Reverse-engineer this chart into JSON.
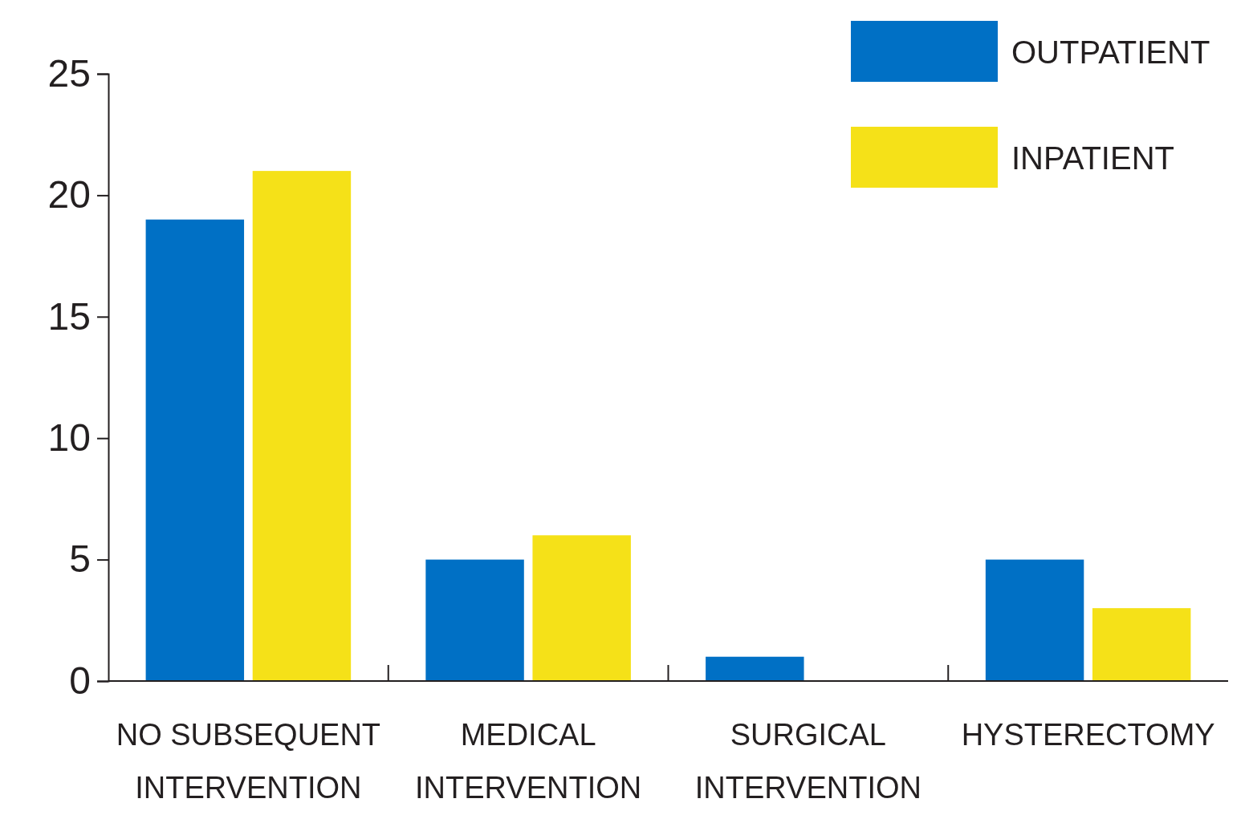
{
  "chart_data": {
    "type": "bar",
    "categories": [
      "NO SUBSEQUENT\nINTERVENTION",
      "MEDICAL\nINTERVENTION",
      "SURGICAL\nINTERVENTION",
      "HYSTERECTOMY"
    ],
    "series": [
      {
        "name": "OUTPATIENT",
        "color": "#0070c5",
        "values": [
          19,
          5,
          1,
          5
        ]
      },
      {
        "name": "INPATIENT",
        "color": "#f5e118",
        "values": [
          21,
          6,
          0,
          3
        ]
      }
    ],
    "ylim": [
      0,
      25
    ],
    "yticks": [
      0,
      5,
      10,
      15,
      20,
      25
    ],
    "grid": false,
    "legend": "top right"
  }
}
